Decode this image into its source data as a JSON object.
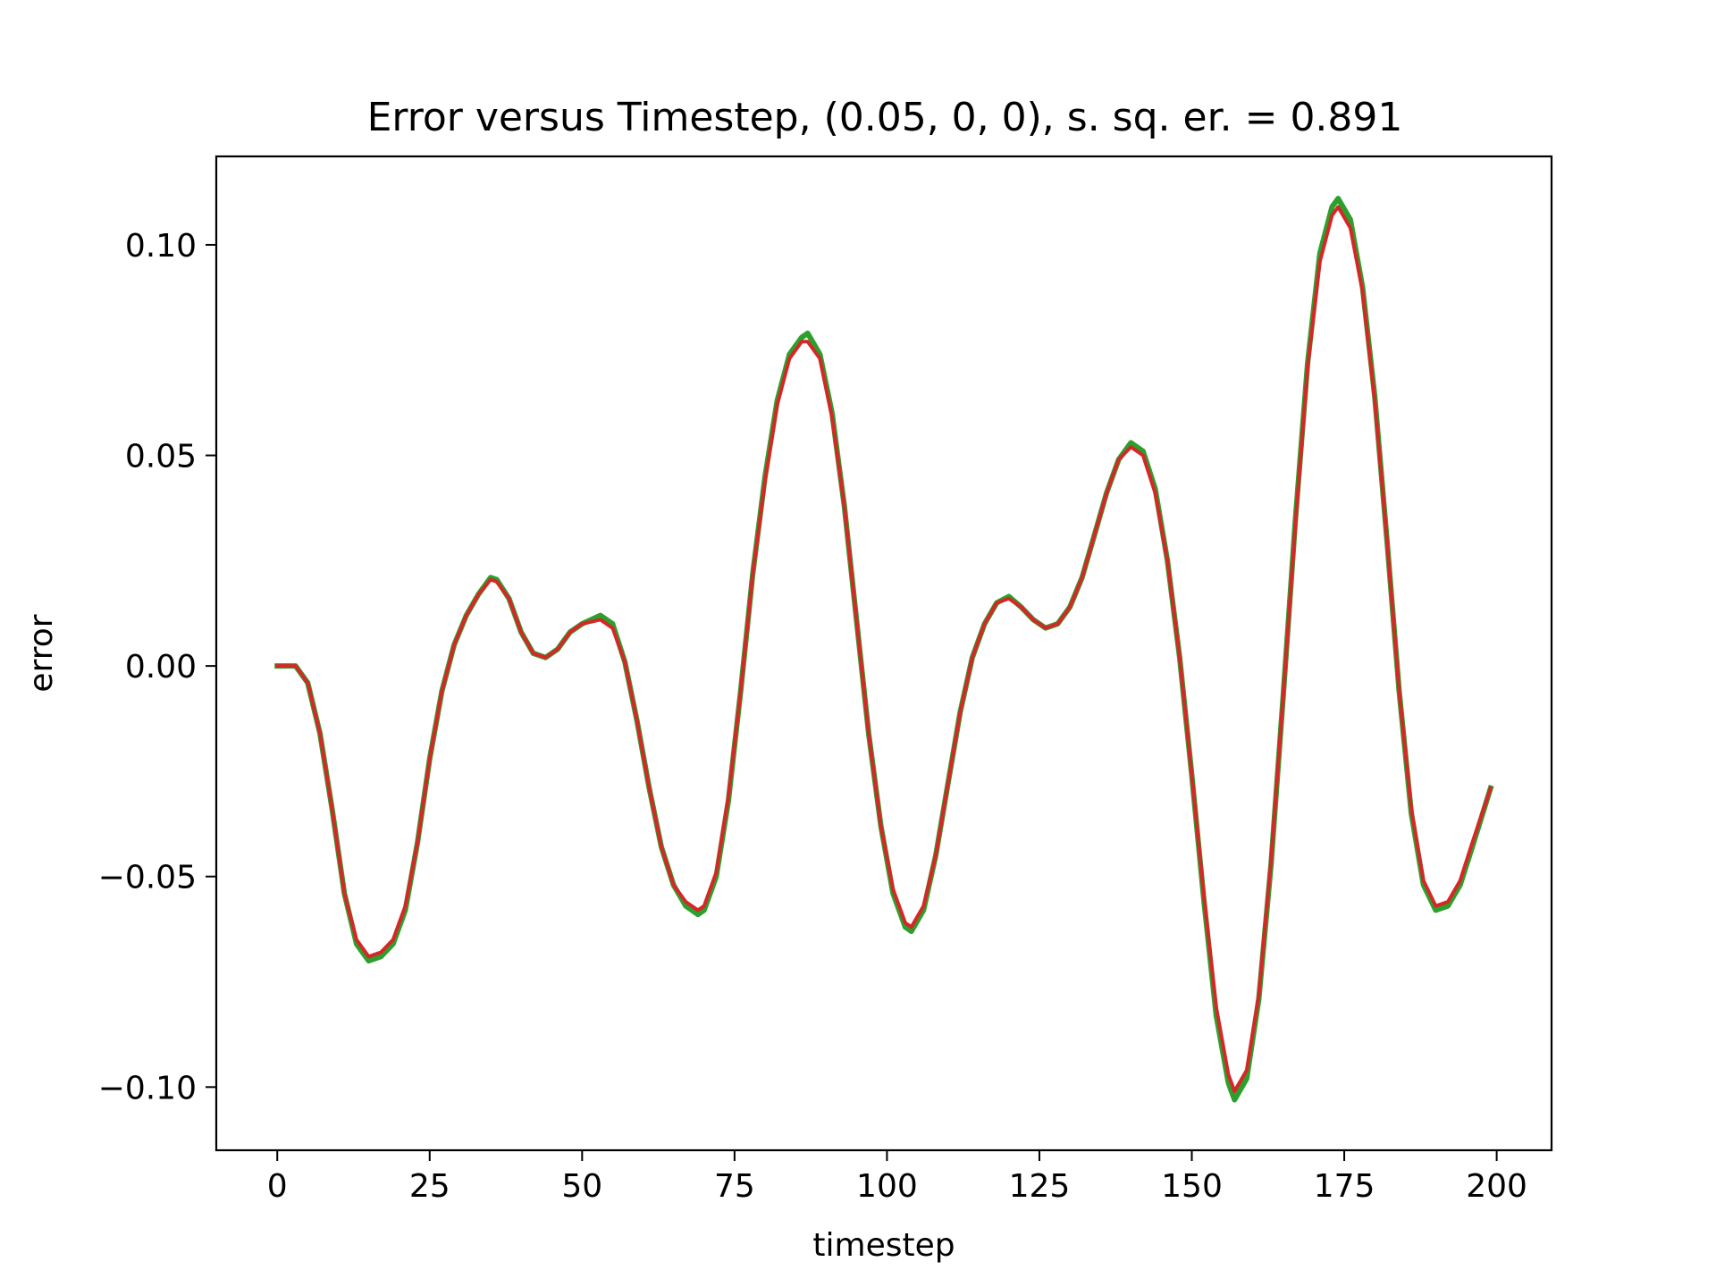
{
  "chart_data": {
    "type": "line",
    "title": "Error versus Timestep, (0.05, 0, 0), s. sq. er. = 0.891",
    "xlabel": "timestep",
    "ylabel": "error",
    "xlim": [
      -10,
      209
    ],
    "ylim": [
      -0.115,
      0.121
    ],
    "x_ticks": [
      0,
      25,
      50,
      75,
      100,
      125,
      150,
      175,
      200
    ],
    "x_tick_labels": [
      "0",
      "25",
      "50",
      "75",
      "100",
      "125",
      "150",
      "175",
      "200"
    ],
    "y_ticks": [
      -0.1,
      -0.05,
      0.0,
      0.05,
      0.1
    ],
    "y_tick_labels": [
      "−0.10",
      "−0.05",
      "0.00",
      "0.05",
      "0.10"
    ],
    "grid": false,
    "legend": "none",
    "series": [
      {
        "color": "#2ca02c",
        "points": [
          [
            0,
            0
          ],
          [
            3,
            0
          ],
          [
            5,
            -0.004
          ],
          [
            7,
            -0.016
          ],
          [
            9,
            -0.034
          ],
          [
            11,
            -0.054
          ],
          [
            13,
            -0.066
          ],
          [
            15,
            -0.07
          ],
          [
            17,
            -0.069
          ],
          [
            19,
            -0.066
          ],
          [
            21,
            -0.058
          ],
          [
            23,
            -0.042
          ],
          [
            25,
            -0.022
          ],
          [
            27,
            -0.006
          ],
          [
            29,
            0.005
          ],
          [
            31,
            0.012
          ],
          [
            33,
            0.017
          ],
          [
            35,
            0.021
          ],
          [
            36,
            0.0205
          ],
          [
            38,
            0.016
          ],
          [
            40,
            0.008
          ],
          [
            42,
            0.003
          ],
          [
            44,
            0.002
          ],
          [
            46,
            0.004
          ],
          [
            48,
            0.008
          ],
          [
            50,
            0.01
          ],
          [
            53,
            0.012
          ],
          [
            55,
            0.01
          ],
          [
            57,
            0.001
          ],
          [
            59,
            -0.013
          ],
          [
            61,
            -0.029
          ],
          [
            63,
            -0.043
          ],
          [
            65,
            -0.052
          ],
          [
            67,
            -0.057
          ],
          [
            69,
            -0.059
          ],
          [
            70,
            -0.058
          ],
          [
            72,
            -0.05
          ],
          [
            74,
            -0.032
          ],
          [
            76,
            -0.006
          ],
          [
            78,
            0.022
          ],
          [
            80,
            0.045
          ],
          [
            82,
            0.063
          ],
          [
            84,
            0.074
          ],
          [
            86,
            0.078
          ],
          [
            87,
            0.079
          ],
          [
            89,
            0.074
          ],
          [
            91,
            0.06
          ],
          [
            93,
            0.038
          ],
          [
            95,
            0.011
          ],
          [
            97,
            -0.016
          ],
          [
            99,
            -0.038
          ],
          [
            101,
            -0.054
          ],
          [
            103,
            -0.062
          ],
          [
            104,
            -0.063
          ],
          [
            106,
            -0.058
          ],
          [
            108,
            -0.045
          ],
          [
            110,
            -0.028
          ],
          [
            112,
            -0.011
          ],
          [
            114,
            0.002
          ],
          [
            116,
            0.01
          ],
          [
            118,
            0.015
          ],
          [
            120,
            0.0165
          ],
          [
            122,
            0.014
          ],
          [
            124,
            0.011
          ],
          [
            126,
            0.009
          ],
          [
            128,
            0.01
          ],
          [
            130,
            0.014
          ],
          [
            132,
            0.021
          ],
          [
            134,
            0.031
          ],
          [
            136,
            0.041
          ],
          [
            138,
            0.049
          ],
          [
            140,
            0.053
          ],
          [
            142,
            0.051
          ],
          [
            144,
            0.042
          ],
          [
            146,
            0.025
          ],
          [
            148,
            0.002
          ],
          [
            150,
            -0.026
          ],
          [
            152,
            -0.056
          ],
          [
            154,
            -0.083
          ],
          [
            156,
            -0.099
          ],
          [
            157,
            -0.103
          ],
          [
            159,
            -0.098
          ],
          [
            161,
            -0.079
          ],
          [
            163,
            -0.047
          ],
          [
            165,
            -0.007
          ],
          [
            167,
            0.035
          ],
          [
            169,
            0.072
          ],
          [
            171,
            0.098
          ],
          [
            173,
            0.109
          ],
          [
            174,
            0.111
          ],
          [
            176,
            0.106
          ],
          [
            178,
            0.09
          ],
          [
            180,
            0.064
          ],
          [
            182,
            0.03
          ],
          [
            184,
            -0.006
          ],
          [
            186,
            -0.035
          ],
          [
            188,
            -0.052
          ],
          [
            190,
            -0.058
          ],
          [
            192,
            -0.057
          ],
          [
            194,
            -0.052
          ],
          [
            196,
            -0.043
          ],
          [
            199,
            -0.029
          ]
        ]
      },
      {
        "color": "#d62728",
        "points": [
          [
            0,
            0
          ],
          [
            3,
            0
          ],
          [
            5,
            -0.004
          ],
          [
            7,
            -0.016
          ],
          [
            9,
            -0.034
          ],
          [
            11,
            -0.054
          ],
          [
            13,
            -0.065
          ],
          [
            15,
            -0.069
          ],
          [
            17,
            -0.068
          ],
          [
            19,
            -0.065
          ],
          [
            21,
            -0.057
          ],
          [
            23,
            -0.042
          ],
          [
            25,
            -0.022
          ],
          [
            27,
            -0.006
          ],
          [
            29,
            0.005
          ],
          [
            31,
            0.012
          ],
          [
            33,
            0.017
          ],
          [
            35,
            0.0205
          ],
          [
            36,
            0.02
          ],
          [
            38,
            0.016
          ],
          [
            40,
            0.008
          ],
          [
            42,
            0.003
          ],
          [
            44,
            0.002
          ],
          [
            46,
            0.004
          ],
          [
            48,
            0.008
          ],
          [
            50,
            0.01
          ],
          [
            53,
            0.011
          ],
          [
            55,
            0.009
          ],
          [
            57,
            0.001
          ],
          [
            59,
            -0.013
          ],
          [
            61,
            -0.029
          ],
          [
            63,
            -0.043
          ],
          [
            65,
            -0.052
          ],
          [
            67,
            -0.056
          ],
          [
            69,
            -0.058
          ],
          [
            70,
            -0.057
          ],
          [
            72,
            -0.049
          ],
          [
            74,
            -0.031
          ],
          [
            76,
            -0.006
          ],
          [
            78,
            0.022
          ],
          [
            80,
            0.044
          ],
          [
            82,
            0.062
          ],
          [
            84,
            0.073
          ],
          [
            86,
            0.077
          ],
          [
            87,
            0.077
          ],
          [
            89,
            0.073
          ],
          [
            91,
            0.059
          ],
          [
            93,
            0.038
          ],
          [
            95,
            0.011
          ],
          [
            97,
            -0.016
          ],
          [
            99,
            -0.038
          ],
          [
            101,
            -0.053
          ],
          [
            103,
            -0.061
          ],
          [
            104,
            -0.062
          ],
          [
            106,
            -0.057
          ],
          [
            108,
            -0.045
          ],
          [
            110,
            -0.028
          ],
          [
            112,
            -0.011
          ],
          [
            114,
            0.002
          ],
          [
            116,
            0.01
          ],
          [
            118,
            0.015
          ],
          [
            120,
            0.016
          ],
          [
            122,
            0.014
          ],
          [
            124,
            0.011
          ],
          [
            126,
            0.009
          ],
          [
            128,
            0.01
          ],
          [
            130,
            0.014
          ],
          [
            132,
            0.021
          ],
          [
            134,
            0.031
          ],
          [
            136,
            0.041
          ],
          [
            138,
            0.049
          ],
          [
            140,
            0.052
          ],
          [
            142,
            0.05
          ],
          [
            144,
            0.041
          ],
          [
            146,
            0.025
          ],
          [
            148,
            0.002
          ],
          [
            150,
            -0.026
          ],
          [
            152,
            -0.055
          ],
          [
            154,
            -0.081
          ],
          [
            156,
            -0.097
          ],
          [
            157,
            -0.101
          ],
          [
            159,
            -0.096
          ],
          [
            161,
            -0.078
          ],
          [
            163,
            -0.046
          ],
          [
            165,
            -0.007
          ],
          [
            167,
            0.034
          ],
          [
            169,
            0.071
          ],
          [
            171,
            0.096
          ],
          [
            173,
            0.107
          ],
          [
            174,
            0.109
          ],
          [
            176,
            0.104
          ],
          [
            178,
            0.089
          ],
          [
            180,
            0.063
          ],
          [
            182,
            0.03
          ],
          [
            184,
            -0.006
          ],
          [
            186,
            -0.034
          ],
          [
            188,
            -0.051
          ],
          [
            190,
            -0.057
          ],
          [
            192,
            -0.056
          ],
          [
            194,
            -0.051
          ],
          [
            196,
            -0.042
          ],
          [
            199,
            -0.029
          ]
        ]
      }
    ]
  }
}
